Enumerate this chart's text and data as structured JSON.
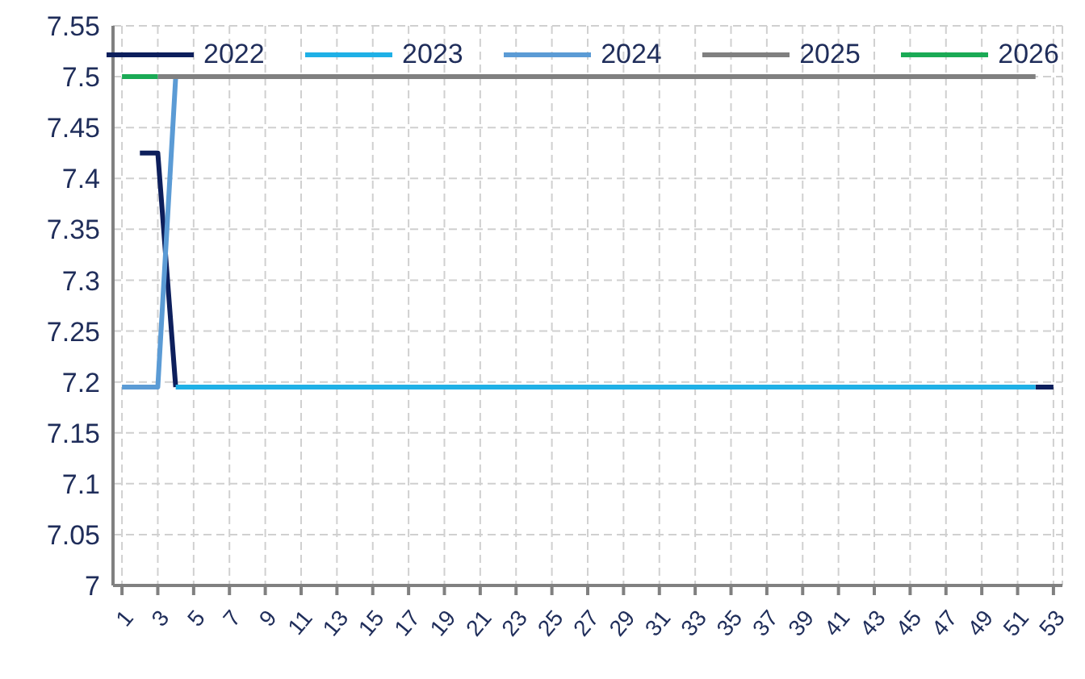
{
  "chart_data": {
    "type": "line",
    "x": [
      1,
      2,
      3,
      4,
      5,
      6,
      7,
      8,
      9,
      10,
      11,
      12,
      13,
      14,
      15,
      16,
      17,
      18,
      19,
      20,
      21,
      22,
      23,
      24,
      25,
      26,
      27,
      28,
      29,
      30,
      31,
      32,
      33,
      34,
      35,
      36,
      37,
      38,
      39,
      40,
      41,
      42,
      43,
      44,
      45,
      46,
      47,
      48,
      49,
      50,
      51,
      52,
      53
    ],
    "xlim": [
      0.5,
      53.5
    ],
    "xticks": [
      1,
      3,
      5,
      7,
      9,
      11,
      13,
      15,
      17,
      19,
      21,
      23,
      25,
      27,
      29,
      31,
      33,
      35,
      37,
      39,
      41,
      43,
      45,
      47,
      49,
      51,
      53
    ],
    "ylim": [
      7,
      7.55
    ],
    "yticks": [
      7,
      7.05,
      7.1,
      7.15,
      7.2,
      7.25,
      7.3,
      7.35,
      7.4,
      7.45,
      7.5,
      7.55
    ],
    "grid": true,
    "legend": "top",
    "marker": "none",
    "line_style": "solid",
    "series": [
      {
        "name": "2022",
        "color": "#0d1f5c",
        "values": [
          null,
          7.425,
          7.425,
          7.195,
          null,
          null,
          null,
          null,
          null,
          null,
          null,
          null,
          null,
          null,
          null,
          null,
          null,
          null,
          null,
          null,
          null,
          null,
          null,
          null,
          null,
          null,
          null,
          null,
          null,
          null,
          null,
          null,
          null,
          null,
          null,
          null,
          null,
          null,
          null,
          null,
          null,
          null,
          null,
          null,
          null,
          null,
          null,
          null,
          null,
          null,
          null,
          7.195,
          7.195
        ]
      },
      {
        "name": "2023",
        "color": "#1fb0e6",
        "values": [
          null,
          null,
          null,
          7.195,
          7.195,
          7.195,
          7.195,
          7.195,
          7.195,
          7.195,
          7.195,
          7.195,
          7.195,
          7.195,
          7.195,
          7.195,
          7.195,
          7.195,
          7.195,
          7.195,
          7.195,
          7.195,
          7.195,
          7.195,
          7.195,
          7.195,
          7.195,
          7.195,
          7.195,
          7.195,
          7.195,
          7.195,
          7.195,
          7.195,
          7.195,
          7.195,
          7.195,
          7.195,
          7.195,
          7.195,
          7.195,
          7.195,
          7.195,
          7.195,
          7.195,
          7.195,
          7.195,
          7.195,
          7.195,
          7.195,
          7.195,
          7.195,
          null
        ]
      },
      {
        "name": "2024",
        "color": "#5b9bd5",
        "values": [
          7.195,
          7.195,
          7.195,
          7.5,
          null,
          null,
          null,
          null,
          null,
          null,
          null,
          null,
          null,
          null,
          null,
          null,
          null,
          null,
          null,
          null,
          null,
          null,
          null,
          null,
          null,
          null,
          null,
          null,
          null,
          null,
          null,
          null,
          null,
          null,
          null,
          null,
          null,
          null,
          null,
          null,
          null,
          null,
          null,
          null,
          null,
          null,
          null,
          null,
          null,
          null,
          null,
          null,
          null
        ]
      },
      {
        "name": "2025",
        "color": "#808080",
        "values": [
          null,
          null,
          7.5,
          7.5,
          7.5,
          7.5,
          7.5,
          7.5,
          7.5,
          7.5,
          7.5,
          7.5,
          7.5,
          7.5,
          7.5,
          7.5,
          7.5,
          7.5,
          7.5,
          7.5,
          7.5,
          7.5,
          7.5,
          7.5,
          7.5,
          7.5,
          7.5,
          7.5,
          7.5,
          7.5,
          7.5,
          7.5,
          7.5,
          7.5,
          7.5,
          7.5,
          7.5,
          7.5,
          7.5,
          7.5,
          7.5,
          7.5,
          7.5,
          7.5,
          7.5,
          7.5,
          7.5,
          7.5,
          7.5,
          7.5,
          7.5,
          7.5,
          null
        ]
      },
      {
        "name": "2026",
        "color": "#1aaa55",
        "values": [
          7.5,
          7.5,
          7.5,
          null,
          null,
          null,
          null,
          null,
          null,
          null,
          null,
          null,
          null,
          null,
          null,
          null,
          null,
          null,
          null,
          null,
          null,
          null,
          null,
          null,
          null,
          null,
          null,
          null,
          null,
          null,
          null,
          null,
          null,
          null,
          null,
          null,
          null,
          null,
          null,
          null,
          null,
          null,
          null,
          null,
          null,
          null,
          null,
          null,
          null,
          null,
          null,
          null,
          null
        ]
      }
    ]
  }
}
